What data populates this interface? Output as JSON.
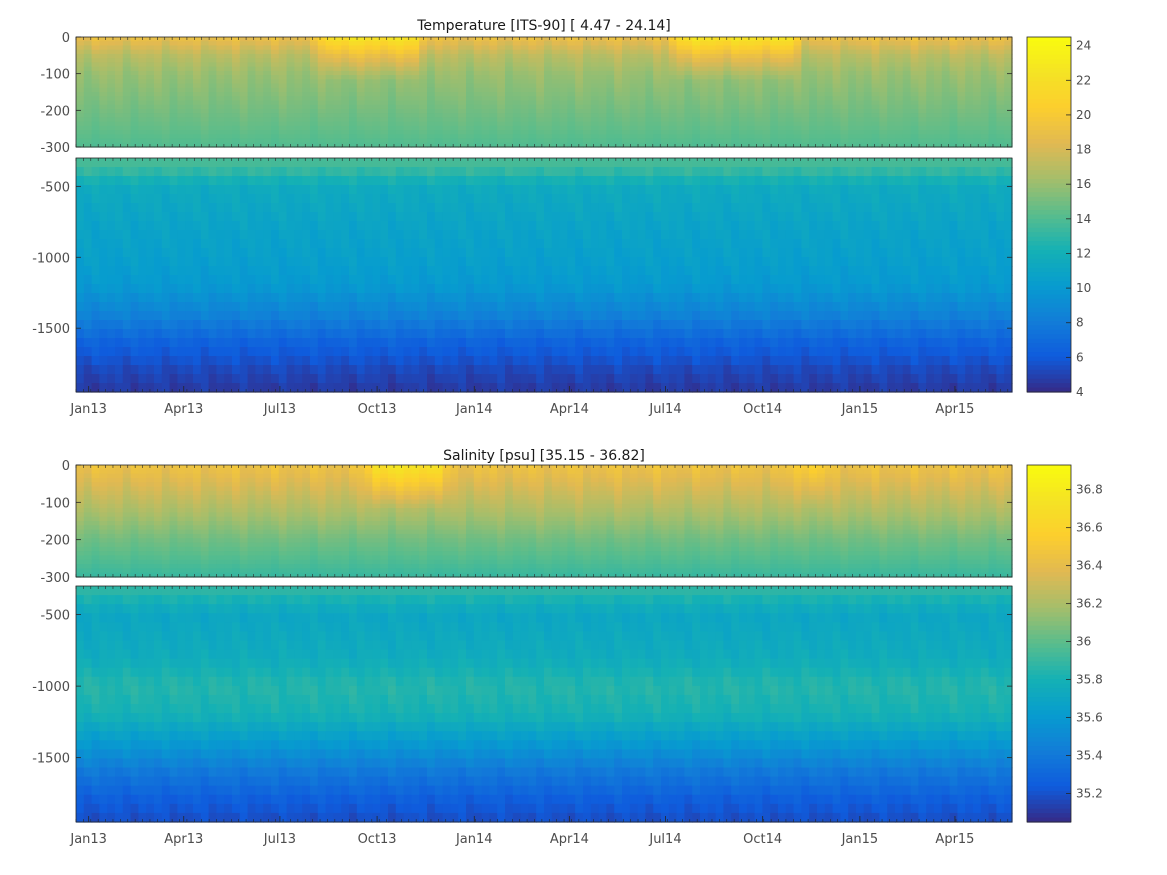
{
  "chart_data": [
    {
      "type": "heatmap",
      "title": "Temperature [ITS-90]   [ 4.47 - 24.14]",
      "x_tick_labels": [
        "Jan13",
        "Apr13",
        "Jul13",
        "Oct13",
        "Jan14",
        "Apr14",
        "Jul14",
        "Oct14",
        "Jan15",
        "Apr15"
      ],
      "x_ticks": [
        "2013-01-01",
        "2013-04-01",
        "2013-07-01",
        "2013-10-01",
        "2014-01-01",
        "2014-04-01",
        "2014-07-01",
        "2014-10-01",
        "2015-01-01",
        "2015-04-01"
      ],
      "xlim": [
        "2012-12-20",
        "2015-05-25"
      ],
      "upper_panel": {
        "ylim": [
          -300,
          0
        ],
        "yticks": [
          0,
          -100,
          -200,
          -300
        ],
        "ytick_labels": [
          "0",
          "-100",
          "-200",
          "-300"
        ]
      },
      "lower_panel": {
        "ylim": [
          -1950,
          -300
        ],
        "yticks": [
          -500,
          -1000,
          -1500
        ],
        "ytick_labels": [
          "-500",
          "-1000",
          "-1500"
        ]
      },
      "colorbar": {
        "range": [
          4,
          24.5
        ],
        "ticks": [
          4,
          6,
          8,
          10,
          12,
          14,
          16,
          18,
          20,
          22,
          24
        ],
        "tick_labels": [
          "4",
          "6",
          "8",
          "10",
          "12",
          "14",
          "16",
          "18",
          "20",
          "22",
          "24"
        ]
      },
      "colormap": "parula",
      "value_range": [
        4.47,
        24.14
      ],
      "depth_profile": [
        {
          "depth": 0,
          "value": 19
        },
        {
          "depth": -50,
          "value": 17
        },
        {
          "depth": -100,
          "value": 16
        },
        {
          "depth": -200,
          "value": 15
        },
        {
          "depth": -300,
          "value": 14
        },
        {
          "depth": -400,
          "value": 13
        },
        {
          "depth": -500,
          "value": 11.5
        },
        {
          "depth": -800,
          "value": 10.8
        },
        {
          "depth": -1000,
          "value": 10.5
        },
        {
          "depth": -1200,
          "value": 10
        },
        {
          "depth": -1400,
          "value": 8.5
        },
        {
          "depth": -1600,
          "value": 6.5
        },
        {
          "depth": -1800,
          "value": 5.2
        },
        {
          "depth": -1950,
          "value": 4.6
        }
      ],
      "surface_warm_periods": [
        {
          "start": "2013-08-01",
          "end": "2013-11-20",
          "peak": 22.5
        },
        {
          "start": "2014-07-01",
          "end": "2014-11-10",
          "peak": 22.5
        }
      ]
    },
    {
      "type": "heatmap",
      "title": "Salinity [psu]   [35.15 - 36.82]",
      "x_tick_labels": [
        "Jan13",
        "Apr13",
        "Jul13",
        "Oct13",
        "Jan14",
        "Apr14",
        "Jul14",
        "Oct14",
        "Jan15",
        "Apr15"
      ],
      "x_ticks": [
        "2013-01-01",
        "2013-04-01",
        "2013-07-01",
        "2013-10-01",
        "2014-01-01",
        "2014-04-01",
        "2014-07-01",
        "2014-10-01",
        "2015-01-01",
        "2015-04-01"
      ],
      "xlim": [
        "2012-12-20",
        "2015-05-25"
      ],
      "upper_panel": {
        "ylim": [
          -300,
          0
        ],
        "yticks": [
          0,
          -100,
          -200,
          -300
        ],
        "ytick_labels": [
          "0",
          "-100",
          "-200",
          "-300"
        ]
      },
      "lower_panel": {
        "ylim": [
          -1950,
          -300
        ],
        "yticks": [
          -500,
          -1000,
          -1500
        ],
        "ytick_labels": [
          "-500",
          "-1000",
          "-1500"
        ]
      },
      "colorbar": {
        "range": [
          35.05,
          36.93
        ],
        "ticks": [
          35.2,
          35.4,
          35.6,
          35.8,
          36,
          36.2,
          36.4,
          36.6,
          36.8
        ],
        "tick_labels": [
          "35.2",
          "35.4",
          "35.6",
          "35.8",
          "36",
          "36.2",
          "36.4",
          "36.6",
          "36.8"
        ]
      },
      "colormap": "parula",
      "value_range": [
        35.15,
        36.82
      ],
      "depth_profile": [
        {
          "depth": 0,
          "value": 36.45
        },
        {
          "depth": -50,
          "value": 36.35
        },
        {
          "depth": -100,
          "value": 36.25
        },
        {
          "depth": -200,
          "value": 36.05
        },
        {
          "depth": -300,
          "value": 35.9
        },
        {
          "depth": -500,
          "value": 35.7
        },
        {
          "depth": -800,
          "value": 35.75
        },
        {
          "depth": -1000,
          "value": 35.85
        },
        {
          "depth": -1200,
          "value": 35.8
        },
        {
          "depth": -1400,
          "value": 35.6
        },
        {
          "depth": -1600,
          "value": 35.4
        },
        {
          "depth": -1800,
          "value": 35.25
        },
        {
          "depth": -1950,
          "value": 35.18
        }
      ],
      "surface_salty_periods": [
        {
          "start": "2013-09-15",
          "end": "2013-12-10",
          "peak": 36.75
        },
        {
          "start": "2014-10-25",
          "end": "2014-12-05",
          "peak": 36.6
        }
      ]
    }
  ]
}
